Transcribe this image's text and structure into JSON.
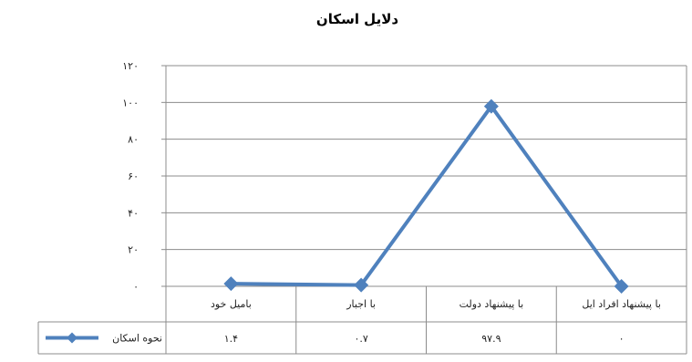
{
  "chart_data": {
    "type": "line",
    "title": "دلایل اسکان",
    "categories": [
      "باميل خود",
      "با اجبار",
      "با پيشنهاد دولت",
      "با پيشنهاد افراد ايل"
    ],
    "series": [
      {
        "name": "نحوه اسکان",
        "values": [
          1.4,
          0.7,
          97.9,
          0
        ],
        "value_labels": [
          "۱.۴",
          "۰.۷",
          "۹۷.۹",
          "۰"
        ],
        "color": "#4f81bd"
      }
    ],
    "ylim": [
      0,
      120
    ],
    "yticks": [
      0,
      20,
      40,
      60,
      80,
      100,
      120
    ],
    "ytick_labels": [
      "۰",
      "۲۰",
      "۴۰",
      "۶۰",
      "۸۰",
      "۱۰۰",
      "۱۲۰"
    ],
    "xlabel": "",
    "ylabel": "",
    "grid": true,
    "legend": "data-table-left"
  }
}
